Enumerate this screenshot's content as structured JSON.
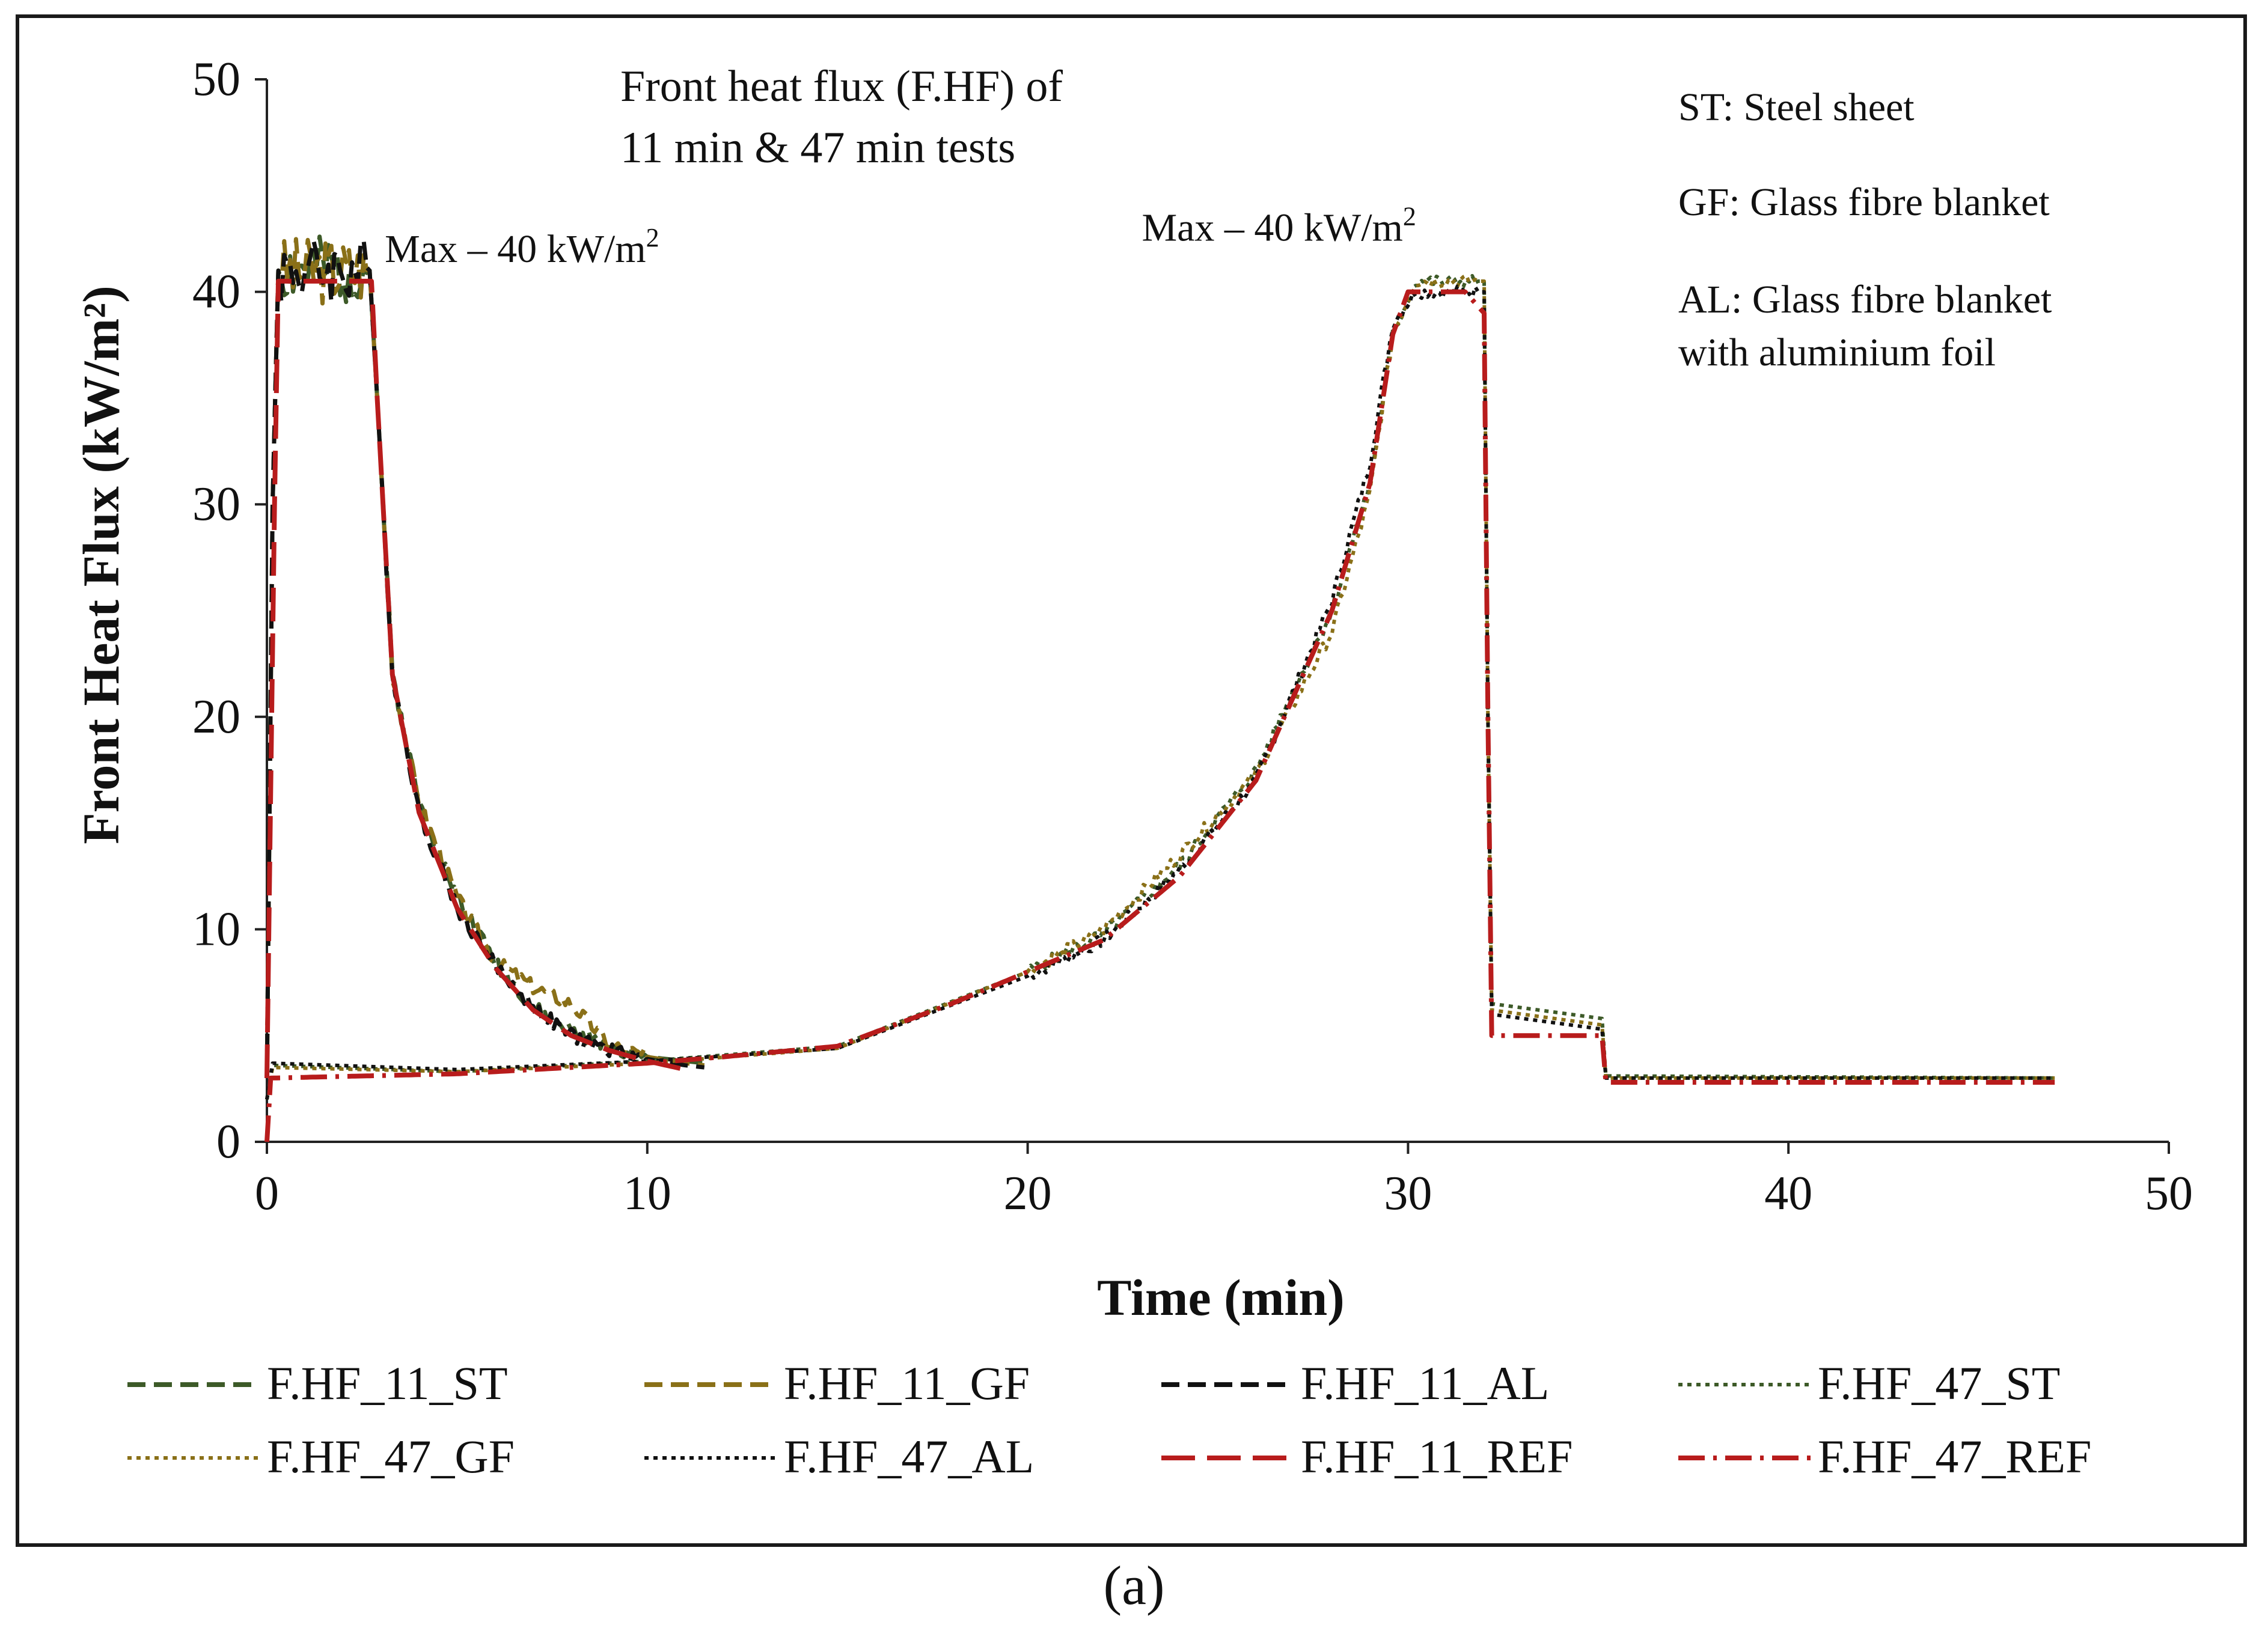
{
  "caption": "(a)",
  "chart_data": {
    "type": "line",
    "title_lines": [
      "Front heat flux (F.HF) of",
      "11 min & 47 min tests"
    ],
    "xlabel": "Time (min)",
    "ylabel": "Front Heat Flux (kW/m²)",
    "xlim": [
      0,
      50
    ],
    "ylim": [
      0,
      50
    ],
    "x_ticks": [
      0,
      10,
      20,
      30,
      40,
      50
    ],
    "y_ticks": [
      0,
      10,
      20,
      30,
      40,
      50
    ],
    "notes": [
      "ST: Steel sheet",
      "GF: Glass fibre blanket",
      "AL: Glass fibre blanket",
      "with aluminium foil"
    ],
    "annotations": [
      {
        "base": "Max – 40 kW/m",
        "sup": "2",
        "x": 3.1,
        "y": 41.4
      },
      {
        "base": "Max – 40 kW/m",
        "sup": "2",
        "x": 23.0,
        "y": 42.4
      }
    ],
    "series": [
      {
        "name": "F.HF_11_ST",
        "color": "#3d5a28",
        "style": "dash",
        "test": "11",
        "seed": 1,
        "x": [
          0,
          0.15,
          0.3,
          2.7,
          2.9,
          3.3,
          4,
          5,
          6,
          7,
          8,
          9,
          10,
          11,
          11.5
        ],
        "y": [
          3,
          30,
          41,
          41,
          35,
          22,
          16,
          11.5,
          8.5,
          6.3,
          5.2,
          4.5,
          4,
          3.8,
          3.7
        ]
      },
      {
        "name": "F.HF_11_GF",
        "color": "#8a7018",
        "style": "dash",
        "test": "11",
        "seed": 2,
        "x": [
          0,
          0.15,
          0.3,
          2.7,
          2.9,
          3.3,
          4,
          5,
          6,
          7,
          8,
          9,
          10,
          11,
          11.5
        ],
        "y": [
          3,
          30,
          41,
          41,
          35,
          22,
          16,
          11.5,
          8.5,
          7.3,
          6.5,
          4.6,
          4,
          3.7,
          3.6
        ]
      },
      {
        "name": "F.HF_11_AL",
        "color": "#111111",
        "style": "dash",
        "test": "11",
        "seed": 3,
        "x": [
          0,
          0.15,
          0.3,
          2.7,
          2.9,
          3.3,
          4,
          5,
          6,
          7,
          8,
          9,
          10,
          11,
          11.5
        ],
        "y": [
          3,
          30,
          41,
          41,
          35,
          22,
          15.5,
          11,
          8.3,
          6.3,
          5,
          4.3,
          3.9,
          3.6,
          3.5
        ]
      },
      {
        "name": "F.HF_47_ST",
        "color": "#3d5a28",
        "style": "dot",
        "test": "47",
        "seed": 4,
        "x": [
          0,
          0.15,
          5,
          10,
          15,
          20,
          22,
          24,
          26,
          28,
          29,
          29.6,
          30.2,
          32,
          32.1,
          32.2,
          35.1,
          35.2,
          47
        ],
        "y": [
          2,
          3.6,
          3.3,
          3.8,
          4.5,
          8,
          9.8,
          13,
          17.5,
          25,
          31,
          38,
          40.5,
          40.5,
          20,
          6.5,
          5.8,
          3.1,
          3
        ]
      },
      {
        "name": "F.HF_47_GF",
        "color": "#8a7018",
        "style": "dot",
        "test": "47",
        "seed": 5,
        "x": [
          0,
          0.15,
          5,
          10,
          15,
          20,
          22,
          24,
          26,
          28,
          29,
          29.6,
          30.2,
          32,
          32.1,
          32.2,
          35.1,
          35.2,
          47
        ],
        "y": [
          2,
          3.5,
          3.3,
          3.7,
          4.4,
          8,
          10,
          13.5,
          17.3,
          24,
          30.5,
          38,
          40.5,
          40.5,
          20,
          6.2,
          5.5,
          3,
          3
        ]
      },
      {
        "name": "F.HF_47_AL",
        "color": "#111111",
        "style": "dot",
        "test": "47",
        "seed": 6,
        "x": [
          0,
          0.15,
          5,
          10,
          15,
          20,
          22,
          24,
          26,
          28,
          29,
          29.6,
          30.2,
          32,
          32.1,
          32.2,
          35.1,
          35.2,
          47
        ],
        "y": [
          2,
          3.7,
          3.4,
          3.8,
          4.4,
          7.8,
          9.5,
          12.8,
          17,
          25.5,
          32,
          38.5,
          40,
          40,
          20,
          6,
          5.3,
          3,
          3
        ]
      },
      {
        "name": "F.HF_11_REF",
        "color": "#b81c1c",
        "style": "longdash",
        "test": "11",
        "seed": 0,
        "x": [
          0,
          0.2,
          0.3,
          2.75,
          2.9,
          3.3,
          4,
          5,
          6,
          7,
          8,
          9,
          10,
          11
        ],
        "y": [
          3,
          30,
          40.5,
          40.5,
          35,
          22,
          15.5,
          11,
          8.2,
          6.2,
          5,
          4.3,
          3.8,
          3.4
        ]
      },
      {
        "name": "F.HF_47_REF",
        "color": "#b81c1c",
        "style": "dashdot",
        "test": "47",
        "seed": 0,
        "x": [
          0,
          0.1,
          5,
          10,
          12,
          15,
          18,
          20,
          22,
          24,
          26,
          28,
          29,
          29.6,
          30,
          31.5,
          32,
          32.1,
          32.2,
          35.1,
          35.2,
          47
        ],
        "y": [
          0,
          3,
          3.2,
          3.7,
          4,
          4.5,
          6.5,
          8,
          9.5,
          12.5,
          17,
          25,
          31,
          38,
          40,
          40,
          39,
          20,
          5,
          5,
          2.8,
          2.8
        ]
      }
    ]
  }
}
